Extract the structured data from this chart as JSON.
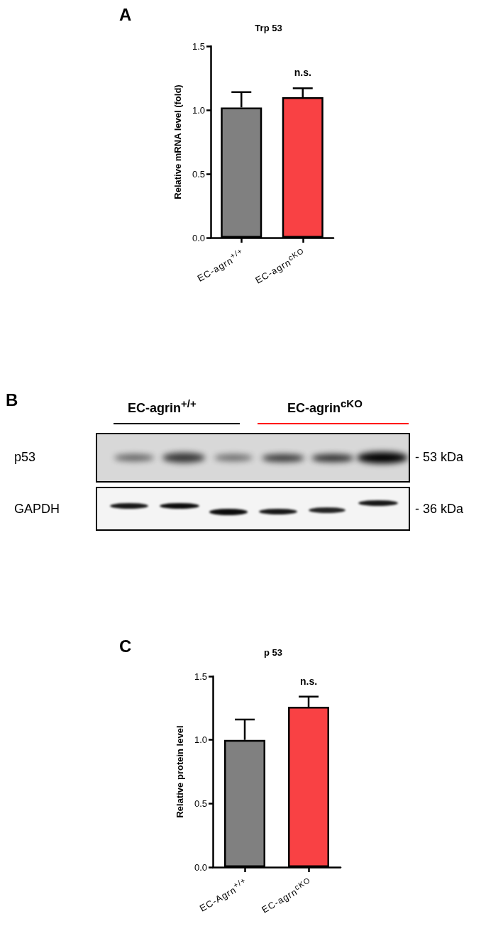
{
  "chart_data": [
    {
      "type": "bar",
      "title": "Trp 53",
      "ylabel": "Relative mRNA level (fold)",
      "categories": [
        "EC-agrn$^{+/+}$",
        "EC-agrn$^{cKO}$"
      ],
      "values": [
        1.02,
        1.1
      ],
      "colors": [
        "#808080",
        "#f94144"
      ],
      "errors": [
        [
          1.02,
          1.14
        ],
        [
          1.1,
          1.17
        ]
      ],
      "ylim": [
        0,
        1.5
      ],
      "yticks": [
        {
          "value": 0,
          "label": "0.0"
        },
        {
          "value": 0.5,
          "label": "0.5"
        },
        {
          "value": 1,
          "label": "1.0"
        },
        {
          "value": 1.5,
          "label": "1.5"
        }
      ],
      "grid": false,
      "annotations": [
        "A",
        "n.s."
      ]
    },
    {
      "type": "other",
      "annotations": [
        "B",
        "EC-agrin$^{+/+}$",
        "EC-agrin$^{cKO}$",
        "p53",
        "GAPDH",
        "- 53 kDa",
        "- 36 kDa"
      ]
    },
    {
      "type": "bar",
      "title": "p 53",
      "ylabel": "Relative protein level",
      "categories": [
        "EC-Agrn$^{+/+}$",
        "EC-agrn$^{cKO}$"
      ],
      "values": [
        1.0,
        1.26
      ],
      "colors": [
        "#808080",
        "#f94144"
      ],
      "errors": [
        [
          1.0,
          1.16
        ],
        [
          1.26,
          1.34
        ]
      ],
      "ylim": [
        0,
        1.5
      ],
      "yticks": [
        {
          "value": 0,
          "label": "0.0"
        },
        {
          "value": 0.5,
          "label": "0.5"
        },
        {
          "value": 1,
          "label": "1.0"
        },
        {
          "value": 1.5,
          "label": "1.5"
        }
      ],
      "grid": false,
      "annotations": [
        "C",
        "n.s."
      ]
    }
  ]
}
